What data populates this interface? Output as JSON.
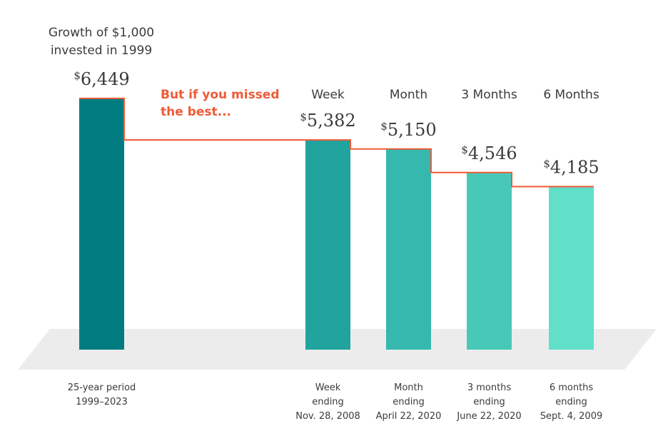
{
  "chart_data": {
    "type": "bar",
    "currency_symbol": "$",
    "ylim": [
      0,
      7000
    ],
    "grid": false,
    "legend": "none",
    "title": [
      "Growth of $1,000",
      "invested in 1999"
    ],
    "callout": [
      "But if you missed",
      "the best..."
    ],
    "categories": [
      [
        "25-year period",
        "1999–2023"
      ],
      [
        "Week",
        "ending",
        "Nov. 28, 2008"
      ],
      [
        "Month",
        "ending",
        "April 22, 2020"
      ],
      [
        "3 months",
        "ending",
        "June 22, 2020"
      ],
      [
        "6 months",
        "ending",
        "Sept. 4, 2009"
      ]
    ],
    "headers": [
      "",
      "Week",
      "Month",
      "3 Months",
      "6 Months"
    ],
    "values": [
      6449,
      5382,
      5150,
      4546,
      4185
    ],
    "value_labels": [
      "6,449",
      "5,382",
      "5,150",
      "4,546",
      "4,185"
    ],
    "colors": [
      "#007c80",
      "#21a39e",
      "#35b8ae",
      "#48c9b8",
      "#62dfc9"
    ],
    "accent": "#ef5a36",
    "floor_color": "#ececec"
  }
}
